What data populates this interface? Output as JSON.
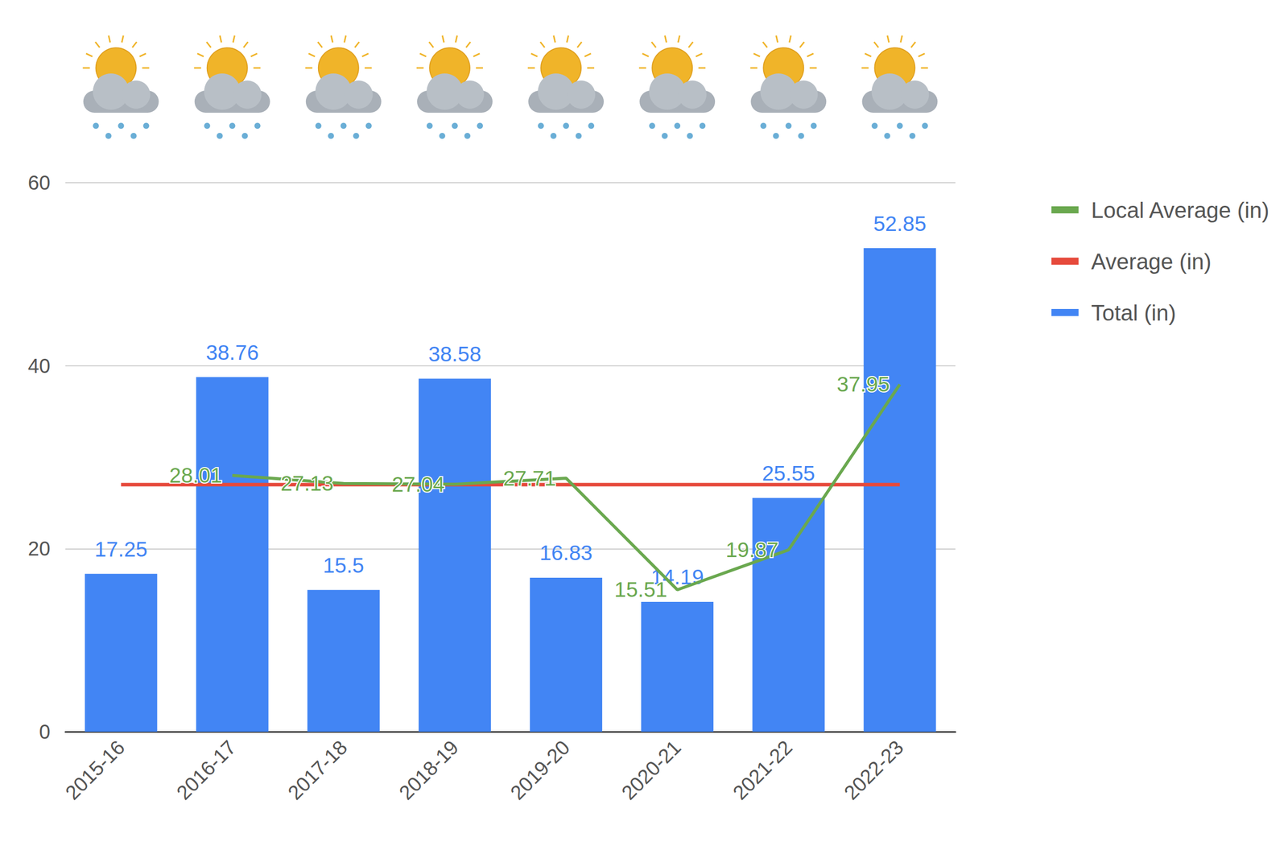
{
  "chart_data": {
    "type": "bar",
    "categories": [
      "2015-16",
      "2016-17",
      "2017-18",
      "2018-19",
      "2019-20",
      "2020-21",
      "2021-22",
      "2022-23"
    ],
    "series": [
      {
        "name": "Local Average (in)",
        "type": "line",
        "color": "#6aa84f",
        "values": [
          null,
          28.01,
          27.13,
          27.04,
          27.71,
          15.51,
          19.87,
          37.95
        ],
        "data_labels": true
      },
      {
        "name": "Average (in)",
        "type": "line",
        "color": "#e64a3c",
        "values": [
          27,
          27,
          27,
          27,
          27,
          27,
          27,
          27
        ]
      },
      {
        "name": "Total (in)",
        "type": "bar",
        "color": "#4285f4",
        "values": [
          17.25,
          38.76,
          15.5,
          38.58,
          16.83,
          14.19,
          25.55,
          52.85
        ],
        "data_labels": true
      }
    ],
    "ylim": [
      0,
      60
    ],
    "yticks": [
      0,
      20,
      40,
      60
    ],
    "grid": true,
    "legend": "right"
  }
}
